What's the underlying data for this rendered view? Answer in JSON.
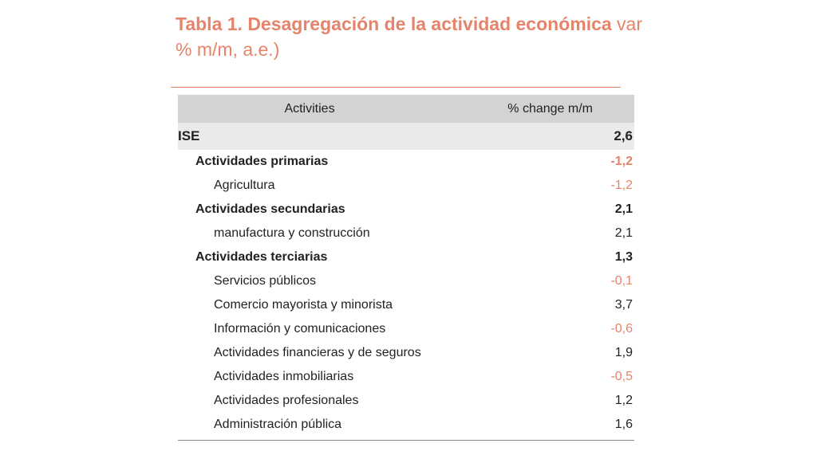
{
  "title": {
    "bold": "Tabla 1. Desagregación de la actividad económica",
    "rest": " var % m/m, a.e.)"
  },
  "table": {
    "col_activity": "Activities",
    "col_change": "% change m/m",
    "rows": [
      {
        "label": "ISE",
        "value": "2,6"
      },
      {
        "label": "Actividades primarias",
        "value": "-1,2"
      },
      {
        "label": "Agricultura",
        "value": "-1,2"
      },
      {
        "label": "Actividades secundarias",
        "value": "2,1"
      },
      {
        "label": "manufactura y construcción",
        "value": "2,1"
      },
      {
        "label": "Actividades terciarias",
        "value": "1,3"
      },
      {
        "label": "Servicios públicos",
        "value": "-0,1"
      },
      {
        "label": "Comercio mayorista y minorista",
        "value": "3,7"
      },
      {
        "label": "Información y comunicaciones",
        "value": "-0,6"
      },
      {
        "label": "Actividades financieras y de seguros",
        "value": "1,9"
      },
      {
        "label": "Actividades inmobiliarias",
        "value": "-0,5"
      },
      {
        "label": "Actividades profesionales",
        "value": "1,2"
      },
      {
        "label": "Administración pública",
        "value": "1,6"
      }
    ]
  },
  "colors": {
    "accent": "#e5846a",
    "header_bg": "#d2d3d4",
    "negative": "#e5846a"
  }
}
